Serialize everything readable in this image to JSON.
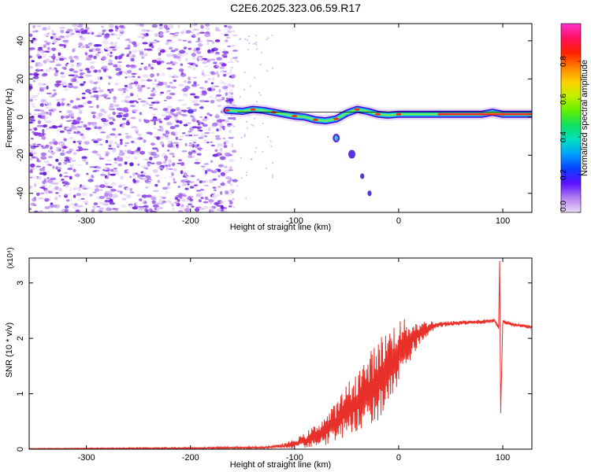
{
  "title": "C2E6.2025.323.06.59.R17",
  "colors": {
    "axis": "#000000",
    "snr_line": "#e8302a",
    "scatter": "#7a1fe0",
    "ridge_edge": "#3a10d8",
    "ridge_core": "#22d8c8",
    "ridge_peak": "#ff3018",
    "reference_line": "#000000"
  },
  "chart_data": [
    {
      "type": "heatmap",
      "xlabel": "Height of straight line (km)",
      "ylabel": "Frequency (Hz)",
      "xlim": [
        -355,
        128
      ],
      "ylim": [
        -50,
        49
      ],
      "x_ticks": [
        -300,
        -200,
        -100,
        0,
        100
      ],
      "y_ticks": [
        -40,
        -20,
        0,
        20,
        40
      ],
      "grid": false,
      "noise_region_km": [
        -355,
        -165
      ],
      "reference_line_freq_hz": 2.6,
      "ridge": [
        {
          "x": -165,
          "y": 3.5
        },
        {
          "x": -150,
          "y": 3.0
        },
        {
          "x": -140,
          "y": 4.0
        },
        {
          "x": -130,
          "y": 3.5
        },
        {
          "x": -120,
          "y": 2.5
        },
        {
          "x": -110,
          "y": 1.5
        },
        {
          "x": -100,
          "y": 0.5
        },
        {
          "x": -90,
          "y": 0.0
        },
        {
          "x": -80,
          "y": -1.5
        },
        {
          "x": -70,
          "y": -2.0
        },
        {
          "x": -60,
          "y": -1.0
        },
        {
          "x": -50,
          "y": 2.0
        },
        {
          "x": -40,
          "y": 4.0
        },
        {
          "x": -30,
          "y": 3.0
        },
        {
          "x": -20,
          "y": 1.5
        },
        {
          "x": -10,
          "y": 1.0
        },
        {
          "x": 0,
          "y": 1.5
        },
        {
          "x": 20,
          "y": 1.5
        },
        {
          "x": 40,
          "y": 1.5
        },
        {
          "x": 60,
          "y": 1.5
        },
        {
          "x": 80,
          "y": 1.5
        },
        {
          "x": 90,
          "y": 2.5
        },
        {
          "x": 100,
          "y": 1.5
        },
        {
          "x": 128,
          "y": 1.5
        }
      ],
      "secondary_blobs": [
        {
          "x": -60,
          "y": -11
        },
        {
          "x": -45,
          "y": -19.5
        },
        {
          "x": -35,
          "y": -31
        },
        {
          "x": -28,
          "y": -40
        }
      ],
      "colorbar": {
        "label": "Normalized spectral amplitude",
        "range": [
          0,
          1
        ],
        "ticks": [
          "0.0",
          "0.2",
          "0.4",
          "0.6",
          "0.8"
        ],
        "tick_values": [
          0,
          0.2,
          0.4,
          0.6,
          0.8
        ],
        "stops": [
          "#ecdcf6",
          "#b27ef0",
          "#5a10ff",
          "#0a40ff",
          "#00a0ff",
          "#00e0c0",
          "#10e060",
          "#60f000",
          "#c0f000",
          "#ffd000",
          "#ff8000",
          "#ff2000",
          "#ff1060",
          "#ff30d0"
        ]
      }
    },
    {
      "type": "line",
      "xlabel": "Height of straight line (km)",
      "ylabel": "SNR (10 * v/v)",
      "y_multiplier": "(x10⁴)",
      "xlim": [
        -355,
        128
      ],
      "ylim": [
        0,
        3.45
      ],
      "x_ticks": [
        -300,
        -200,
        -100,
        0,
        100
      ],
      "y_ticks": [
        0,
        1,
        2,
        3
      ],
      "grid": false,
      "series": [
        {
          "trend": [
            [
              -355,
              0.01
            ],
            [
              -200,
              0.02
            ],
            [
              -130,
              0.03
            ],
            [
              -110,
              0.06
            ],
            [
              -100,
              0.1
            ],
            [
              -90,
              0.15
            ],
            [
              -80,
              0.25
            ],
            [
              -70,
              0.35
            ],
            [
              -60,
              0.5
            ],
            [
              -50,
              0.7
            ],
            [
              -40,
              0.85
            ],
            [
              -30,
              1.0
            ],
            [
              -20,
              1.25
            ],
            [
              -10,
              1.5
            ],
            [
              0,
              1.75
            ],
            [
              10,
              1.95
            ],
            [
              20,
              2.1
            ],
            [
              30,
              2.2
            ],
            [
              40,
              2.25
            ],
            [
              60,
              2.28
            ],
            [
              80,
              2.3
            ],
            [
              92,
              2.32
            ],
            [
              96,
              2.2
            ],
            [
              97,
              3.4
            ],
            [
              98,
              0.65
            ],
            [
              100,
              2.3
            ],
            [
              110,
              2.25
            ],
            [
              128,
              2.2
            ]
          ],
          "noise_envelope": [
            [
              -355,
              0.005
            ],
            [
              -120,
              0.02
            ],
            [
              -100,
              0.08
            ],
            [
              -80,
              0.2
            ],
            [
              -60,
              0.35
            ],
            [
              -40,
              0.6
            ],
            [
              -20,
              0.75
            ],
            [
              0,
              0.6
            ],
            [
              20,
              0.2
            ],
            [
              40,
              0.05
            ],
            [
              128,
              0.03
            ]
          ]
        }
      ]
    }
  ]
}
